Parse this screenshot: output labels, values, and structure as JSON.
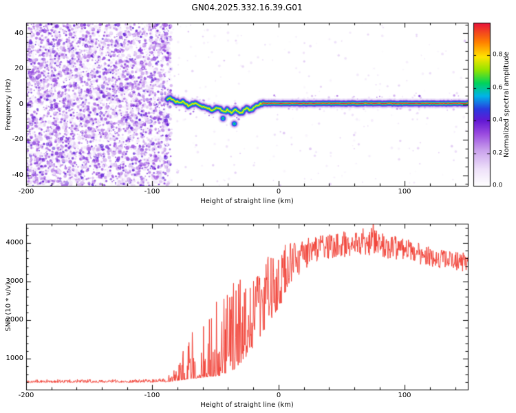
{
  "title": "GN04.2025.332.16.39.G01",
  "chart_data": [
    {
      "type": "heatmap",
      "panel": "spectrogram",
      "xlabel": "Height of straight line (km)",
      "ylabel": "Frequency (Hz)",
      "xlim": [
        -200,
        150
      ],
      "ylim": [
        -46,
        46
      ],
      "xtick_values": [
        -200,
        -100,
        0,
        100
      ],
      "xtick_labels": [
        "-200",
        "-100",
        "0",
        "100"
      ],
      "xtick_minor_step": 20,
      "ytick_values": [
        -40,
        -20,
        0,
        20,
        40
      ],
      "ytick_labels": [
        "-40",
        "-20",
        "0",
        "20",
        "40"
      ],
      "ytick_minor_step": 5,
      "colorbar": {
        "label": "Normalized spectral amplitude",
        "tick_values": [
          0,
          0.2,
          0.4,
          0.6,
          0.8
        ],
        "tick_labels": [
          "0.0",
          "0.2",
          "0.4",
          "0.6",
          "0.8"
        ],
        "range": [
          0,
          1
        ],
        "colormap_stops": [
          {
            "v": 0.0,
            "color": "#ffffff"
          },
          {
            "v": 0.1,
            "color": "#efe2fa"
          },
          {
            "v": 0.22,
            "color": "#c9a0ec"
          },
          {
            "v": 0.32,
            "color": "#9a4ae0"
          },
          {
            "v": 0.4,
            "color": "#6318d4"
          },
          {
            "v": 0.47,
            "color": "#2a3ae0"
          },
          {
            "v": 0.55,
            "color": "#00b4e8"
          },
          {
            "v": 0.63,
            "color": "#00d45a"
          },
          {
            "v": 0.71,
            "color": "#93e400"
          },
          {
            "v": 0.79,
            "color": "#ffe400"
          },
          {
            "v": 0.88,
            "color": "#ff8000"
          },
          {
            "v": 1.0,
            "color": "#e8103c"
          }
        ]
      },
      "noise_region": {
        "x_range": [
          -200,
          -88
        ],
        "y_range": [
          -46,
          46
        ],
        "amplitude_range": [
          0.03,
          0.42
        ]
      },
      "signal_trace": {
        "x": [
          -88,
          -85,
          -82,
          -79,
          -76,
          -73,
          -70,
          -67,
          -64,
          -61,
          -58,
          -55,
          -52,
          -49,
          -46,
          -43,
          -40,
          -37,
          -34,
          -31,
          -28,
          -25,
          -22,
          -19,
          -16,
          -13,
          -10,
          -5,
          0,
          10,
          30,
          60,
          100,
          150
        ],
        "center_freq": [
          2.5,
          3.5,
          2.0,
          0.5,
          1.5,
          0.0,
          -1.0,
          0.5,
          -0.5,
          -2.0,
          -1.0,
          -2.5,
          -3.5,
          -2.5,
          -3.0,
          -4.0,
          -3.0,
          -4.5,
          -3.5,
          -5.0,
          -4.0,
          -2.5,
          -3.5,
          -2.0,
          -0.5,
          0.5,
          0.5,
          0.5,
          0.5,
          0.5,
          0.5,
          0.5,
          0.5,
          0.5
        ],
        "blobs": [
          {
            "x": -35,
            "freq": -11
          },
          {
            "x": -44,
            "freq": -8
          }
        ]
      }
    },
    {
      "type": "line",
      "panel": "snr",
      "xlabel": "Height of straight line (km)",
      "ylabel": "SNR (10 * v/v)",
      "xlim": [
        -200,
        150
      ],
      "ylim": [
        200,
        4500
      ],
      "xtick_values": [
        -200,
        -100,
        0,
        100
      ],
      "xtick_labels": [
        "-200",
        "-100",
        "0",
        "100"
      ],
      "xtick_minor_step": 20,
      "ytick_values": [
        1000,
        2000,
        3000,
        4000
      ],
      "ytick_labels": [
        "1000",
        "2000",
        "3000",
        "4000"
      ],
      "ytick_minor_step": 200,
      "color": "#f0382c",
      "trend": {
        "x": [
          -200,
          -120,
          -95,
          -88,
          -82,
          -76,
          -70,
          -64,
          -58,
          -52,
          -46,
          -40,
          -34,
          -28,
          -22,
          -16,
          -10,
          -4,
          2,
          8,
          14,
          20,
          26,
          34,
          42,
          50,
          60,
          70,
          80,
          90,
          100,
          115,
          130,
          150
        ],
        "base": [
          380,
          385,
          390,
          400,
          420,
          450,
          480,
          500,
          520,
          540,
          560,
          620,
          750,
          950,
          1200,
          1500,
          1800,
          2100,
          2400,
          2800,
          3100,
          3300,
          3450,
          3550,
          3600,
          3620,
          3650,
          3680,
          3620,
          3580,
          3520,
          3420,
          3320,
          3250
        ],
        "spike": [
          80,
          80,
          90,
          150,
          400,
          800,
          1200,
          1500,
          1700,
          1900,
          2100,
          2200,
          2300,
          2300,
          2200,
          2100,
          1900,
          1700,
          1500,
          1200,
          900,
          800,
          700,
          650,
          650,
          680,
          700,
          750,
          700,
          650,
          600,
          550,
          500,
          480
        ],
        "skew": [
          2,
          2,
          2,
          3,
          4,
          4.5,
          4.5,
          4,
          4,
          3.5,
          3,
          2.5,
          2,
          1.8,
          1.5,
          1.3,
          1.2,
          1.1,
          1,
          1,
          1,
          1,
          1,
          1,
          1,
          1,
          1,
          1,
          1,
          1,
          1,
          1,
          1,
          1
        ],
        "max_spike_x": 75,
        "max_spike_value": 4480
      }
    }
  ]
}
